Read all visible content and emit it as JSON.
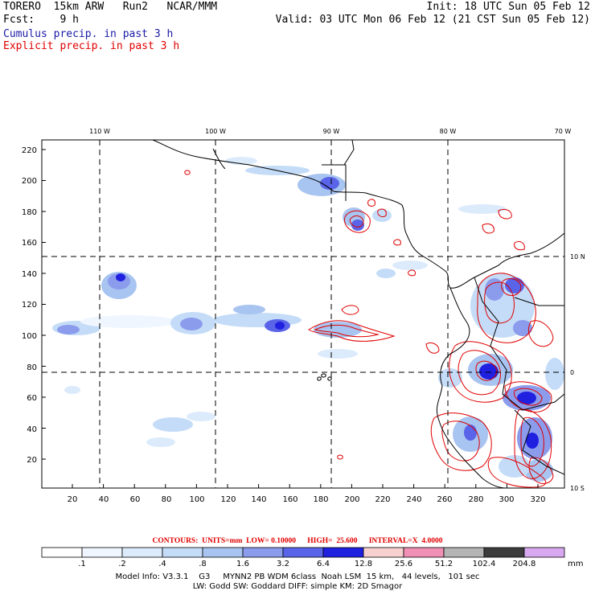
{
  "header": {
    "model": "TORERO  15km ARW   Run2   NCAR/MMM",
    "init": "Init: 18 UTC Sun 05 Feb 12",
    "fcst": "Fcst:    9 h",
    "valid": "Valid: 03 UTC Mon 06 Feb 12 (21 CST Sun 05 Feb 12)",
    "cumulus": "Cumulus precip. in past 3 h",
    "explicit": "Explicit precip. in past 3 h"
  },
  "colors": {
    "cumulus_text": "#1a1aa8",
    "explicit_text": "#e00000",
    "contour": "#e00000",
    "coast": "#000000"
  },
  "axes": {
    "x_ticks": [
      "20",
      "40",
      "60",
      "80",
      "100",
      "120",
      "140",
      "160",
      "180",
      "200",
      "220",
      "240",
      "260",
      "280",
      "300",
      "320"
    ],
    "y_ticks": [
      "20",
      "40",
      "60",
      "80",
      "100",
      "120",
      "140",
      "160",
      "180",
      "200",
      "220"
    ],
    "lon_labels": [
      "110 W",
      "100 W",
      "90 W",
      "80 W",
      "70 W"
    ],
    "lat_labels": [
      "10 N",
      "0",
      "10 S"
    ]
  },
  "contour_info": "CONTOURS:  UNITS=mm  LOW= 0.10000      HIGH=  25.600      INTERVAL=X  4.0000",
  "colorbar": {
    "levels": [
      ".1",
      ".2",
      ".4",
      ".8",
      "1.6",
      "3.2",
      "6.4",
      "12.8",
      "25.6",
      "51.2",
      "102.4",
      "204.8"
    ],
    "colors": [
      "#ffffff",
      "#f0f6ff",
      "#dcebfc",
      "#c4dcf8",
      "#a8c4f0",
      "#8c9cec",
      "#5a64e8",
      "#2020e0",
      "#f8d0d0",
      "#f090b4",
      "#b4b4b4",
      "#3c3c3c",
      "#d8a8f0"
    ],
    "unit": "mm"
  },
  "footer": {
    "line1": "Model Info: V3.3.1    G3     MYNN2 PB WDM 6class  Noah LSM  15 km,   44 levels,   101 sec",
    "line2": "LW: Godd SW: Goddard DIFF: simple KM: 2D Smagor"
  }
}
